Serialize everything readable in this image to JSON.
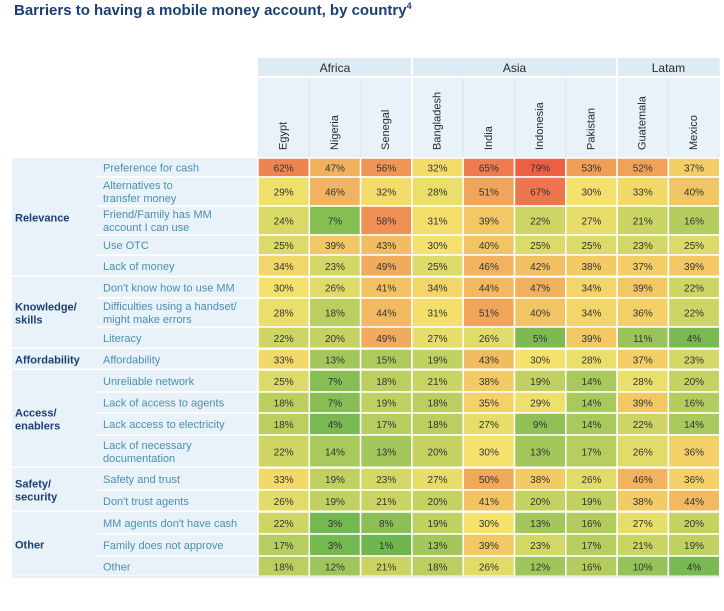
{
  "title": "Barriers to having a mobile money account, by country",
  "title_superscript": "4",
  "chart_data": {
    "type": "heatmap",
    "title": "Barriers to having a mobile money account, by country",
    "regions": [
      {
        "name": "Africa",
        "countries": [
          "Egypt",
          "Nigeria",
          "Senegal"
        ]
      },
      {
        "name": "Asia",
        "countries": [
          "Bangladesh",
          "India",
          "Indonesia",
          "Pakistan"
        ]
      },
      {
        "name": "Latam",
        "countries": [
          "Guatemala",
          "Mexico"
        ]
      }
    ],
    "countries": [
      "Egypt",
      "Nigeria",
      "Senegal",
      "Bangladesh",
      "India",
      "Indonesia",
      "Pakistan",
      "Guatemala",
      "Mexico"
    ],
    "value_unit": "%",
    "color_scale": {
      "low": "#6fb64f",
      "mid": "#f4e26d",
      "high": "#ec5f45"
    },
    "groups": [
      {
        "name": "Relevance",
        "rows": [
          {
            "label": [
              "Preference for cash"
            ],
            "values": [
              62,
              47,
              56,
              32,
              65,
              79,
              53,
              52,
              37
            ]
          },
          {
            "label": [
              "Alternatives to",
              "transfer money"
            ],
            "values": [
              29,
              46,
              32,
              28,
              51,
              67,
              30,
              33,
              40
            ]
          },
          {
            "label": [
              "Friend/Family has MM",
              "account I can use"
            ],
            "values": [
              24,
              7,
              58,
              31,
              39,
              22,
              27,
              21,
              16
            ]
          },
          {
            "label": [
              "Use OTC"
            ],
            "values": [
              25,
              39,
              43,
              30,
              40,
              25,
              25,
              23,
              25
            ]
          },
          {
            "label": [
              "Lack of money"
            ],
            "values": [
              34,
              23,
              49,
              25,
              46,
              42,
              38,
              37,
              39
            ]
          }
        ]
      },
      {
        "name": "Knowledge/ skills",
        "name_lines": [
          "Knowledge/",
          "skills"
        ],
        "rows": [
          {
            "label": [
              "Don't know how to use MM"
            ],
            "values": [
              30,
              26,
              41,
              34,
              44,
              47,
              34,
              39,
              22
            ]
          },
          {
            "label": [
              "Difficulties using a handset/",
              "might make errors"
            ],
            "values": [
              28,
              18,
              44,
              31,
              51,
              40,
              34,
              36,
              22
            ]
          },
          {
            "label": [
              "Literacy"
            ],
            "values": [
              22,
              20,
              49,
              27,
              26,
              5,
              39,
              11,
              4
            ]
          }
        ]
      },
      {
        "name": "Affordability",
        "name_lines": [
          "Affordability"
        ],
        "rows": [
          {
            "label": [
              "Affordability"
            ],
            "values": [
              33,
              13,
              15,
              19,
              43,
              30,
              28,
              37,
              23
            ]
          }
        ]
      },
      {
        "name": "Access/ enablers",
        "name_lines": [
          "Access/",
          "enablers"
        ],
        "rows": [
          {
            "label": [
              "Unreliable network"
            ],
            "values": [
              25,
              7,
              18,
              21,
              38,
              19,
              14,
              28,
              20
            ]
          },
          {
            "label": [
              "Lack of access to agents"
            ],
            "values": [
              18,
              7,
              19,
              18,
              35,
              29,
              14,
              39,
              16
            ]
          },
          {
            "label": [
              "Lack access to electricity"
            ],
            "values": [
              18,
              4,
              17,
              18,
              27,
              9,
              14,
              22,
              14
            ]
          },
          {
            "label": [
              "Lack of necessary",
              "documentation"
            ],
            "values": [
              22,
              14,
              13,
              20,
              30,
              13,
              17,
              26,
              36
            ]
          }
        ]
      },
      {
        "name": "Safety/ security",
        "name_lines": [
          "Safety/",
          "security"
        ],
        "rows": [
          {
            "label": [
              "Safety and trust"
            ],
            "values": [
              33,
              19,
              23,
              27,
              50,
              38,
              26,
              46,
              36
            ]
          },
          {
            "label": [
              "Don't trust agents"
            ],
            "values": [
              26,
              19,
              21,
              20,
              41,
              20,
              19,
              38,
              44
            ]
          }
        ]
      },
      {
        "name": "Other",
        "name_lines": [
          "Other"
        ],
        "rows": [
          {
            "label": [
              "MM agents don't have cash"
            ],
            "values": [
              22,
              3,
              8,
              19,
              30,
              13,
              16,
              27,
              20
            ]
          },
          {
            "label": [
              "Family does not approve"
            ],
            "values": [
              17,
              3,
              1,
              13,
              39,
              23,
              17,
              21,
              19
            ]
          },
          {
            "label": [
              "Other"
            ],
            "values": [
              18,
              12,
              21,
              18,
              26,
              12,
              16,
              10,
              4
            ]
          }
        ]
      }
    ]
  }
}
